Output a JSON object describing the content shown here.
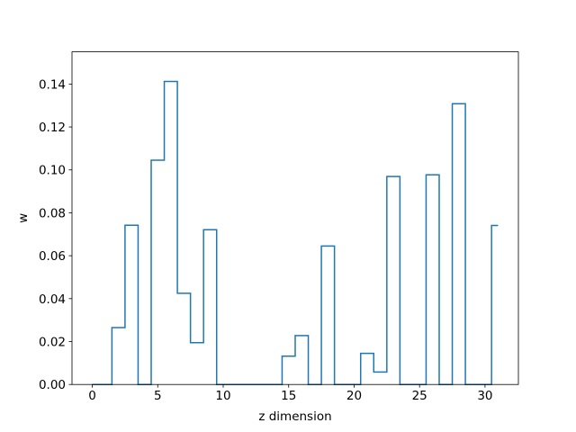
{
  "chart_data": {
    "type": "line",
    "drawstyle": "steps-mid",
    "xlabel": "z dimension",
    "ylabel": "w",
    "xlim": [
      -1.55,
      32.55
    ],
    "ylim": [
      0.0,
      0.155
    ],
    "xticks": [
      0,
      5,
      10,
      15,
      20,
      25,
      30
    ],
    "xtick_labels": [
      "0",
      "5",
      "10",
      "15",
      "20",
      "25",
      "30"
    ],
    "yticks": [
      0.0,
      0.02,
      0.04,
      0.06,
      0.08,
      0.1,
      0.12,
      0.14
    ],
    "ytick_labels": [
      "0.00",
      "0.02",
      "0.04",
      "0.06",
      "0.08",
      "0.10",
      "0.12",
      "0.14"
    ],
    "grid": false,
    "series": [
      {
        "color": "#1f77b4",
        "x": [
          0,
          1,
          2,
          3,
          4,
          5,
          6,
          7,
          8,
          9,
          10,
          11,
          12,
          13,
          14,
          15,
          16,
          17,
          18,
          19,
          20,
          21,
          22,
          23,
          24,
          25,
          26,
          27,
          28,
          29,
          30,
          31
        ],
        "y": [
          0.0,
          0.0,
          0.0265,
          0.0742,
          0.0,
          0.1045,
          0.1412,
          0.0425,
          0.0195,
          0.0721,
          0.0,
          0.0,
          0.0,
          0.0,
          0.0,
          0.0132,
          0.0228,
          0.0,
          0.0645,
          0.0,
          0.0,
          0.0145,
          0.0058,
          0.0969,
          0.0,
          0.0,
          0.0977,
          0.0,
          0.1308,
          0.0,
          0.0,
          0.0741
        ]
      }
    ]
  }
}
